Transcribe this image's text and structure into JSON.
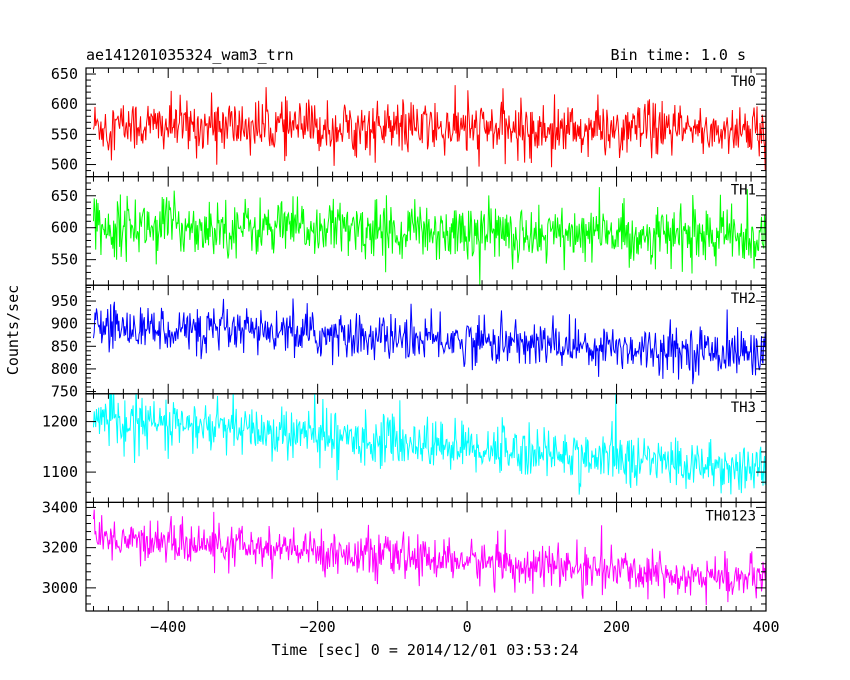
{
  "header": {
    "title": "ae141201035324_wam3_trn",
    "bin_time": "Bin time: 1.0 s"
  },
  "chart_data": {
    "type": "line",
    "title": "ae141201035324_wam3_trn",
    "subtitle": "Bin time: 1.0 s",
    "xlabel": "Time [sec] 0 = 2014/12/01 03:53:24",
    "ylabel": "Counts/sec",
    "xlim": [
      -510,
      400
    ],
    "x_ticks": [
      -400,
      -200,
      0,
      200,
      400
    ],
    "x_tick_labels": [
      "−400",
      "−200",
      "0",
      "200",
      "400"
    ],
    "bin_time_s": 1.0,
    "grid": false,
    "panels": [
      {
        "name": "TH0",
        "color": "#ff0000",
        "ylim": [
          480,
          660
        ],
        "yticks": [
          500,
          550,
          600,
          650
        ],
        "trend": {
          "start": 565,
          "end": 555
        },
        "noise_sd": 22,
        "spike_range": 45
      },
      {
        "name": "TH1",
        "color": "#00ff00",
        "ylim": [
          510,
          680
        ],
        "yticks": [
          550,
          600,
          650
        ],
        "trend": {
          "start": 605,
          "end": 585
        },
        "noise_sd": 22,
        "spike_range": 45
      },
      {
        "name": "TH2",
        "color": "#0000ff",
        "ylim": [
          745,
          985
        ],
        "yticks": [
          750,
          800,
          850,
          900,
          950
        ],
        "trend": {
          "start": 895,
          "end": 835
        },
        "noise_sd": 25,
        "spike_range": 55
      },
      {
        "name": "TH3",
        "color": "#00ffff",
        "ylim": [
          1040,
          1255
        ],
        "yticks": [
          1100,
          1200
        ],
        "trend": {
          "start": 1205,
          "end": 1105
        },
        "noise_sd": 25,
        "spike_range": 55
      },
      {
        "name": "TH0123",
        "color": "#ff00ff",
        "ylim": [
          2885,
          3425
        ],
        "yticks": [
          3000,
          3200,
          3400
        ],
        "trend": {
          "start": 3250,
          "end": 3040
        },
        "noise_sd": 50,
        "spike_range": 120
      }
    ]
  }
}
